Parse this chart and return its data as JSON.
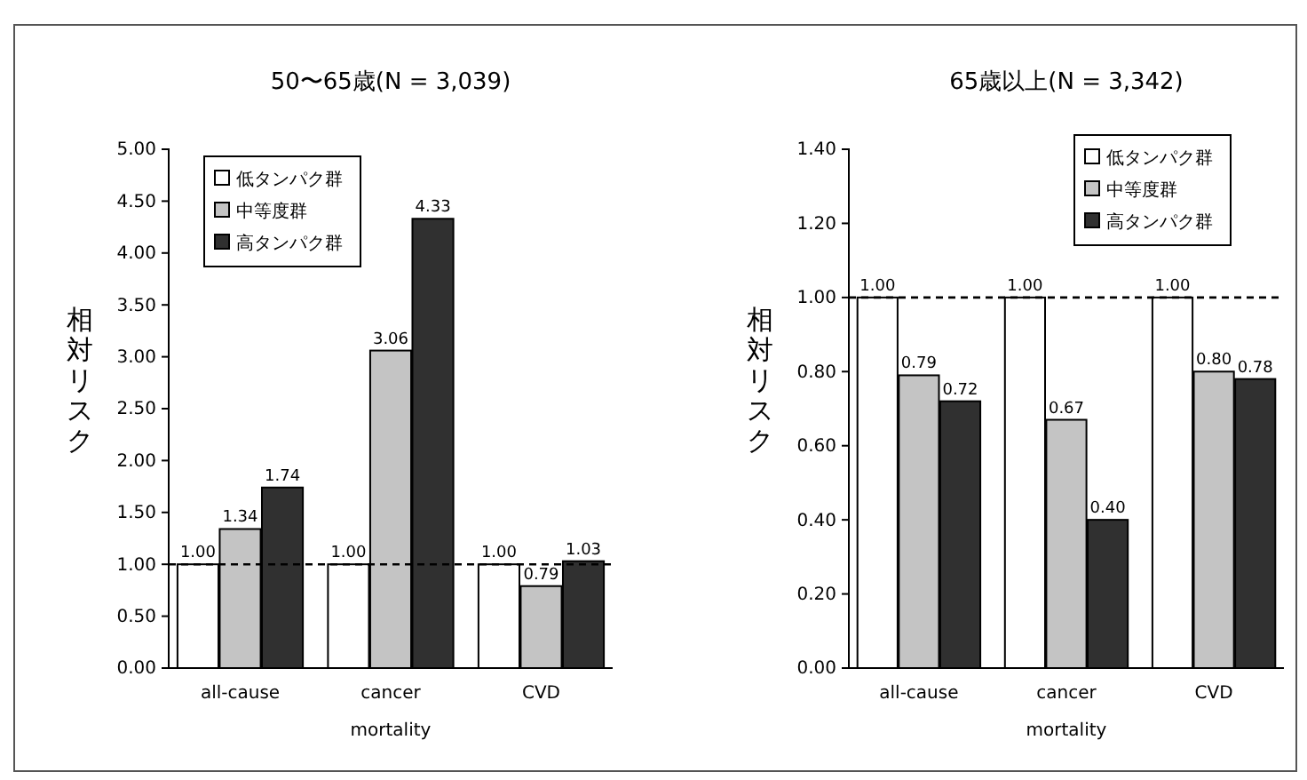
{
  "chart_data": [
    {
      "type": "bar",
      "title": "50〜65歳(N = 3,039)",
      "xlabel": "mortality",
      "ylabel": "相対リスク",
      "categories": [
        "all-cause",
        "cancer",
        "CVD"
      ],
      "series": [
        {
          "name": "低タンパク群",
          "color": "#ffffff",
          "values": [
            1.0,
            1.0,
            1.0
          ],
          "value_labels": [
            "1.00",
            "1.00",
            "1.00"
          ]
        },
        {
          "name": "中等度群",
          "color": "#c4c4c4",
          "values": [
            1.34,
            3.06,
            0.79
          ],
          "value_labels": [
            "1.34",
            "3.06",
            "0.79"
          ]
        },
        {
          "name": "高タンパク群",
          "color": "#303030",
          "values": [
            1.74,
            4.33,
            1.03
          ],
          "value_labels": [
            "1.74",
            "4.33",
            "1.03"
          ]
        }
      ],
      "ylim": [
        0,
        5
      ],
      "yticks": [
        {
          "value": 0,
          "label": "0.00"
        },
        {
          "value": 0.5,
          "label": "0.50"
        },
        {
          "value": 1,
          "label": "1.00"
        },
        {
          "value": 1.5,
          "label": "1.50"
        },
        {
          "value": 2,
          "label": "2.00"
        },
        {
          "value": 2.5,
          "label": "2.50"
        },
        {
          "value": 3,
          "label": "3.00"
        },
        {
          "value": 3.5,
          "label": "3.50"
        },
        {
          "value": 4,
          "label": "4.00"
        },
        {
          "value": 4.5,
          "label": "4.50"
        },
        {
          "value": 5,
          "label": "5.00"
        }
      ],
      "ref_lines": [
        {
          "axis": "y",
          "value": 1,
          "line_style": "dashed",
          "color": "#000000"
        }
      ],
      "legend": "top left",
      "grid": false
    },
    {
      "type": "bar",
      "title": "65歳以上(N = 3,342)",
      "xlabel": "mortality",
      "ylabel": "相対リスク",
      "categories": [
        "all-cause",
        "cancer",
        "CVD"
      ],
      "series": [
        {
          "name": "低タンパク群",
          "color": "#ffffff",
          "values": [
            1.0,
            1.0,
            1.0
          ],
          "value_labels": [
            "1.00",
            "1.00",
            "1.00"
          ]
        },
        {
          "name": "中等度群",
          "color": "#c4c4c4",
          "values": [
            0.79,
            0.67,
            0.8
          ],
          "value_labels": [
            "0.79",
            "0.67",
            "0.80"
          ]
        },
        {
          "name": "高タンパク群",
          "color": "#303030",
          "values": [
            0.72,
            0.4,
            0.78
          ],
          "value_labels": [
            "0.72",
            "0.40",
            "0.78"
          ]
        }
      ],
      "ylim": [
        0,
        1.4
      ],
      "yticks": [
        {
          "value": 0,
          "label": "0.00"
        },
        {
          "value": 0.2,
          "label": "0.20"
        },
        {
          "value": 0.4,
          "label": "0.40"
        },
        {
          "value": 0.6,
          "label": "0.60"
        },
        {
          "value": 0.8,
          "label": "0.80"
        },
        {
          "value": 1,
          "label": "1.00"
        },
        {
          "value": 1.2,
          "label": "1.20"
        },
        {
          "value": 1.4,
          "label": "1.40"
        }
      ],
      "ref_lines": [
        {
          "axis": "y",
          "value": 1,
          "line_style": "dashed",
          "color": "#000000"
        }
      ],
      "legend": "top right",
      "grid": false
    }
  ]
}
